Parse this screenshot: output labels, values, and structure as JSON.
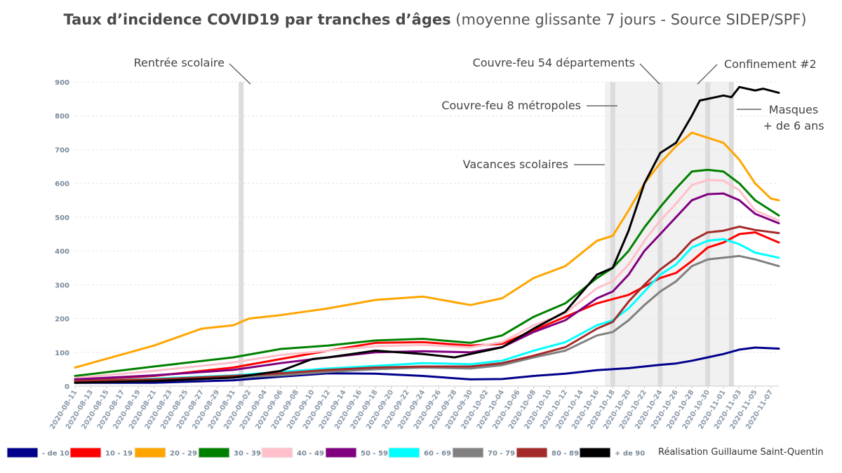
{
  "title": {
    "bold": "Taux d’incidence COVID19 par tranches d’âges",
    "rest": "(moyenne glissante 7 jours - Source SIDEP/SPF)"
  },
  "credit": "Réalisation Guillaume Saint-Quentin",
  "chart_data": {
    "type": "line",
    "ylim": [
      0,
      900
    ],
    "yticks": [
      0,
      100,
      200,
      300,
      400,
      500,
      600,
      700,
      800,
      900
    ],
    "grid": true,
    "legend_position": "bottom",
    "x_start": "2020-08-11",
    "x_end": "2020-11-08",
    "x_ticks": [
      "2020-08-11",
      "2020-08-13",
      "2020-08-15",
      "2020-08-17",
      "2020-08-19",
      "2020-08-21",
      "2020-08-23",
      "2020-08-25",
      "2020-08-27",
      "2020-08-29",
      "2020-08-31",
      "2020-09-02",
      "2020-09-04",
      "2020-09-06",
      "2020-09-08",
      "2020-09-10",
      "2020-09-12",
      "2020-09-14",
      "2020-09-16",
      "2020-09-18",
      "2020-09-20",
      "2020-09-22",
      "2020-09-24",
      "2020-09-26",
      "2020-09-28",
      "2020-09-30",
      "2020-10-02",
      "2020-10-04",
      "2020-10-06",
      "2020-10-08",
      "2020-10-10",
      "2020-10-12",
      "2020-10-14",
      "2020-10-16",
      "2020-10-18",
      "2020-10-20",
      "2020-10-22",
      "2020-10-24",
      "2020-10-26",
      "2020-10-28",
      "2020-10-30",
      "2020-11-01",
      "2020-11-03",
      "2020-11-05",
      "2020-11-07"
    ],
    "shaded_period": {
      "from": "2020-10-17",
      "to": "2020-11-02",
      "label": "Vacances scolaires"
    },
    "event_lines": [
      {
        "date": "2020-09-01",
        "label": "Rentrée scolaire"
      },
      {
        "date": "2020-10-18",
        "label": "Couvre-feu 8 métropoles"
      },
      {
        "date": "2020-10-24",
        "label": "Couvre-feu 54 départements"
      },
      {
        "date": "2020-10-30",
        "label": "Confinement #2"
      },
      {
        "date": "2020-11-02",
        "label": "Masques",
        "label2": "+ de 6 ans"
      }
    ],
    "series": [
      {
        "name": "- de 10",
        "color": "#00008b",
        "points": [
          [
            "2020-08-11",
            10
          ],
          [
            "2020-08-21",
            10
          ],
          [
            "2020-08-31",
            17
          ],
          [
            "2020-09-06",
            28
          ],
          [
            "2020-09-12",
            38
          ],
          [
            "2020-09-18",
            37
          ],
          [
            "2020-09-24",
            30
          ],
          [
            "2020-09-30",
            20
          ],
          [
            "2020-10-04",
            21
          ],
          [
            "2020-10-08",
            30
          ],
          [
            "2020-10-12",
            37
          ],
          [
            "2020-10-16",
            47
          ],
          [
            "2020-10-20",
            53
          ],
          [
            "2020-10-24",
            63
          ],
          [
            "2020-10-26",
            67
          ],
          [
            "2020-10-28",
            75
          ],
          [
            "2020-10-30",
            85
          ],
          [
            "2020-11-01",
            95
          ],
          [
            "2020-11-03",
            108
          ],
          [
            "2020-11-05",
            114
          ],
          [
            "2020-11-08",
            111
          ]
        ]
      },
      {
        "name": "10 - 19",
        "color": "#ff0000",
        "points": [
          [
            "2020-08-11",
            17
          ],
          [
            "2020-08-21",
            30
          ],
          [
            "2020-08-31",
            55
          ],
          [
            "2020-09-06",
            80
          ],
          [
            "2020-09-12",
            105
          ],
          [
            "2020-09-18",
            128
          ],
          [
            "2020-09-24",
            130
          ],
          [
            "2020-09-30",
            120
          ],
          [
            "2020-10-04",
            125
          ],
          [
            "2020-10-08",
            165
          ],
          [
            "2020-10-12",
            205
          ],
          [
            "2020-10-16",
            245
          ],
          [
            "2020-10-20",
            270
          ],
          [
            "2020-10-24",
            320
          ],
          [
            "2020-10-26",
            335
          ],
          [
            "2020-10-28",
            370
          ],
          [
            "2020-10-30",
            410
          ],
          [
            "2020-11-01",
            425
          ],
          [
            "2020-11-03",
            450
          ],
          [
            "2020-11-05",
            455
          ],
          [
            "2020-11-08",
            425
          ]
        ]
      },
      {
        "name": "20 - 29",
        "color": "#ffa500",
        "points": [
          [
            "2020-08-11",
            55
          ],
          [
            "2020-08-21",
            120
          ],
          [
            "2020-08-27",
            170
          ],
          [
            "2020-08-31",
            180
          ],
          [
            "2020-09-02",
            200
          ],
          [
            "2020-09-06",
            210
          ],
          [
            "2020-09-12",
            230
          ],
          [
            "2020-09-18",
            255
          ],
          [
            "2020-09-24",
            265
          ],
          [
            "2020-09-30",
            240
          ],
          [
            "2020-10-04",
            260
          ],
          [
            "2020-10-08",
            320
          ],
          [
            "2020-10-12",
            355
          ],
          [
            "2020-10-16",
            430
          ],
          [
            "2020-10-18",
            445
          ],
          [
            "2020-10-20",
            520
          ],
          [
            "2020-10-22",
            600
          ],
          [
            "2020-10-24",
            660
          ],
          [
            "2020-10-26",
            710
          ],
          [
            "2020-10-28",
            750
          ],
          [
            "2020-10-30",
            735
          ],
          [
            "2020-11-01",
            720
          ],
          [
            "2020-11-03",
            670
          ],
          [
            "2020-11-05",
            600
          ],
          [
            "2020-11-07",
            555
          ],
          [
            "2020-11-08",
            550
          ]
        ]
      },
      {
        "name": "30 - 39",
        "color": "#008000",
        "points": [
          [
            "2020-08-11",
            30
          ],
          [
            "2020-08-21",
            58
          ],
          [
            "2020-08-31",
            85
          ],
          [
            "2020-09-06",
            110
          ],
          [
            "2020-09-12",
            120
          ],
          [
            "2020-09-18",
            135
          ],
          [
            "2020-09-24",
            140
          ],
          [
            "2020-09-30",
            128
          ],
          [
            "2020-10-04",
            150
          ],
          [
            "2020-10-08",
            205
          ],
          [
            "2020-10-12",
            245
          ],
          [
            "2020-10-16",
            320
          ],
          [
            "2020-10-18",
            350
          ],
          [
            "2020-10-20",
            400
          ],
          [
            "2020-10-22",
            470
          ],
          [
            "2020-10-24",
            530
          ],
          [
            "2020-10-26",
            585
          ],
          [
            "2020-10-28",
            635
          ],
          [
            "2020-10-30",
            640
          ],
          [
            "2020-11-01",
            635
          ],
          [
            "2020-11-03",
            600
          ],
          [
            "2020-11-05",
            550
          ],
          [
            "2020-11-08",
            505
          ]
        ]
      },
      {
        "name": "40 - 49",
        "color": "#ffc0cb",
        "points": [
          [
            "2020-08-11",
            24
          ],
          [
            "2020-08-21",
            45
          ],
          [
            "2020-08-31",
            70
          ],
          [
            "2020-09-06",
            92
          ],
          [
            "2020-09-12",
            105
          ],
          [
            "2020-09-18",
            118
          ],
          [
            "2020-09-24",
            122
          ],
          [
            "2020-09-30",
            115
          ],
          [
            "2020-10-04",
            130
          ],
          [
            "2020-10-08",
            180
          ],
          [
            "2020-10-12",
            215
          ],
          [
            "2020-10-16",
            290
          ],
          [
            "2020-10-18",
            310
          ],
          [
            "2020-10-20",
            360
          ],
          [
            "2020-10-22",
            430
          ],
          [
            "2020-10-24",
            490
          ],
          [
            "2020-10-26",
            540
          ],
          [
            "2020-10-28",
            595
          ],
          [
            "2020-10-30",
            610
          ],
          [
            "2020-11-01",
            608
          ],
          [
            "2020-11-03",
            580
          ],
          [
            "2020-11-05",
            520
          ],
          [
            "2020-11-08",
            490
          ]
        ]
      },
      {
        "name": "50 - 59",
        "color": "#800080",
        "points": [
          [
            "2020-08-11",
            20
          ],
          [
            "2020-08-21",
            32
          ],
          [
            "2020-08-31",
            48
          ],
          [
            "2020-09-06",
            68
          ],
          [
            "2020-09-12",
            85
          ],
          [
            "2020-09-18",
            100
          ],
          [
            "2020-09-24",
            103
          ],
          [
            "2020-09-30",
            100
          ],
          [
            "2020-10-04",
            115
          ],
          [
            "2020-10-08",
            160
          ],
          [
            "2020-10-12",
            195
          ],
          [
            "2020-10-16",
            260
          ],
          [
            "2020-10-18",
            280
          ],
          [
            "2020-10-20",
            330
          ],
          [
            "2020-10-22",
            400
          ],
          [
            "2020-10-24",
            450
          ],
          [
            "2020-10-26",
            500
          ],
          [
            "2020-10-28",
            550
          ],
          [
            "2020-10-30",
            568
          ],
          [
            "2020-11-01",
            570
          ],
          [
            "2020-11-03",
            550
          ],
          [
            "2020-11-05",
            510
          ],
          [
            "2020-11-08",
            482
          ]
        ]
      },
      {
        "name": "60 - 69",
        "color": "#00ffff",
        "points": [
          [
            "2020-08-11",
            14
          ],
          [
            "2020-08-21",
            22
          ],
          [
            "2020-08-31",
            32
          ],
          [
            "2020-09-06",
            42
          ],
          [
            "2020-09-12",
            52
          ],
          [
            "2020-09-18",
            60
          ],
          [
            "2020-09-24",
            68
          ],
          [
            "2020-09-30",
            65
          ],
          [
            "2020-10-04",
            75
          ],
          [
            "2020-10-08",
            105
          ],
          [
            "2020-10-12",
            130
          ],
          [
            "2020-10-16",
            180
          ],
          [
            "2020-10-18",
            195
          ],
          [
            "2020-10-20",
            230
          ],
          [
            "2020-10-22",
            280
          ],
          [
            "2020-10-24",
            330
          ],
          [
            "2020-10-26",
            360
          ],
          [
            "2020-10-28",
            410
          ],
          [
            "2020-10-30",
            430
          ],
          [
            "2020-11-01",
            435
          ],
          [
            "2020-11-03",
            420
          ],
          [
            "2020-11-05",
            395
          ],
          [
            "2020-11-08",
            380
          ]
        ]
      },
      {
        "name": "70 - 79",
        "color": "#808080",
        "points": [
          [
            "2020-08-11",
            12
          ],
          [
            "2020-08-21",
            18
          ],
          [
            "2020-08-31",
            25
          ],
          [
            "2020-09-06",
            32
          ],
          [
            "2020-09-12",
            42
          ],
          [
            "2020-09-18",
            50
          ],
          [
            "2020-09-24",
            55
          ],
          [
            "2020-09-30",
            52
          ],
          [
            "2020-10-04",
            62
          ],
          [
            "2020-10-08",
            85
          ],
          [
            "2020-10-12",
            105
          ],
          [
            "2020-10-16",
            150
          ],
          [
            "2020-10-18",
            160
          ],
          [
            "2020-10-20",
            195
          ],
          [
            "2020-10-22",
            240
          ],
          [
            "2020-10-24",
            280
          ],
          [
            "2020-10-26",
            310
          ],
          [
            "2020-10-28",
            355
          ],
          [
            "2020-10-30",
            375
          ],
          [
            "2020-11-01",
            380
          ],
          [
            "2020-11-03",
            385
          ],
          [
            "2020-11-05",
            375
          ],
          [
            "2020-11-08",
            355
          ]
        ]
      },
      {
        "name": "80 - 89",
        "color": "#a52a2a",
        "points": [
          [
            "2020-08-11",
            15
          ],
          [
            "2020-08-21",
            20
          ],
          [
            "2020-08-31",
            30
          ],
          [
            "2020-09-06",
            38
          ],
          [
            "2020-09-12",
            48
          ],
          [
            "2020-09-18",
            55
          ],
          [
            "2020-09-24",
            58
          ],
          [
            "2020-09-30",
            58
          ],
          [
            "2020-10-04",
            68
          ],
          [
            "2020-10-08",
            90
          ],
          [
            "2020-10-12",
            115
          ],
          [
            "2020-10-16",
            170
          ],
          [
            "2020-10-18",
            190
          ],
          [
            "2020-10-20",
            250
          ],
          [
            "2020-10-22",
            300
          ],
          [
            "2020-10-24",
            345
          ],
          [
            "2020-10-26",
            380
          ],
          [
            "2020-10-28",
            430
          ],
          [
            "2020-10-30",
            455
          ],
          [
            "2020-11-01",
            460
          ],
          [
            "2020-11-03",
            472
          ],
          [
            "2020-11-05",
            462
          ],
          [
            "2020-11-08",
            453
          ]
        ]
      },
      {
        "name": "+ de 90",
        "color": "#000000",
        "points": [
          [
            "2020-08-11",
            10
          ],
          [
            "2020-08-21",
            15
          ],
          [
            "2020-08-31",
            25
          ],
          [
            "2020-09-06",
            45
          ],
          [
            "2020-09-10",
            80
          ],
          [
            "2020-09-12",
            85
          ],
          [
            "2020-09-18",
            105
          ],
          [
            "2020-09-24",
            95
          ],
          [
            "2020-09-28",
            85
          ],
          [
            "2020-09-30",
            95
          ],
          [
            "2020-10-04",
            115
          ],
          [
            "2020-10-08",
            170
          ],
          [
            "2020-10-12",
            220
          ],
          [
            "2020-10-16",
            330
          ],
          [
            "2020-10-18",
            350
          ],
          [
            "2020-10-20",
            460
          ],
          [
            "2020-10-22",
            600
          ],
          [
            "2020-10-24",
            690
          ],
          [
            "2020-10-26",
            720
          ],
          [
            "2020-10-28",
            800
          ],
          [
            "2020-10-29",
            845
          ],
          [
            "2020-10-31",
            855
          ],
          [
            "2020-11-01",
            860
          ],
          [
            "2020-11-02",
            855
          ],
          [
            "2020-11-03",
            885
          ],
          [
            "2020-11-05",
            875
          ],
          [
            "2020-11-06",
            880
          ],
          [
            "2020-11-08",
            868
          ]
        ]
      }
    ]
  }
}
